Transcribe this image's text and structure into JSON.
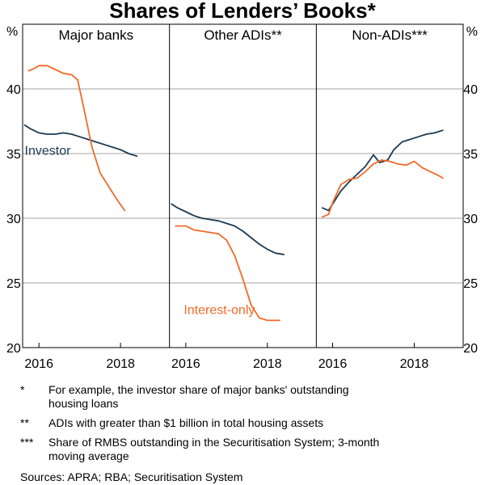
{
  "chart_data": {
    "type": "line",
    "title": "Shares of Lenders’ Books*",
    "y_unit_left": "%",
    "y_unit_right": "%",
    "ylim": [
      20,
      45
    ],
    "y_ticks": [
      20,
      25,
      30,
      35,
      40
    ],
    "x_tick_labels": [
      "2016",
      "2018"
    ],
    "x_ticks": [
      2016,
      2018
    ],
    "xlim": [
      2015.6,
      2019.2
    ],
    "panels": [
      {
        "title": "Major banks",
        "series": [
          {
            "name": "Investor",
            "color": "#1b3a53",
            "label_text": "Investor",
            "x": [
              2015.65,
              2015.8,
              2016.0,
              2016.2,
              2016.4,
              2016.6,
              2016.8,
              2017.0,
              2017.2,
              2017.4,
              2017.6,
              2017.8,
              2018.0,
              2018.2,
              2018.4
            ],
            "y": [
              37.2,
              36.9,
              36.6,
              36.5,
              36.5,
              36.6,
              36.5,
              36.3,
              36.1,
              35.9,
              35.7,
              35.5,
              35.3,
              35.0,
              34.8
            ]
          },
          {
            "name": "Interest-only",
            "color": "#f26a26",
            "x": [
              2015.75,
              2015.9,
              2016.0,
              2016.2,
              2016.4,
              2016.6,
              2016.8,
              2016.95,
              2017.1,
              2017.3,
              2017.5,
              2017.7,
              2017.9,
              2018.1
            ],
            "y": [
              41.4,
              41.6,
              41.8,
              41.8,
              41.5,
              41.2,
              41.1,
              40.7,
              38.5,
              35.5,
              33.5,
              32.5,
              31.5,
              30.6
            ]
          }
        ]
      },
      {
        "title": "Other ADIs**",
        "series": [
          {
            "name": "Investor",
            "color": "#1b3a53",
            "x": [
              2015.65,
              2015.8,
              2016.0,
              2016.2,
              2016.4,
              2016.6,
              2016.8,
              2017.0,
              2017.2,
              2017.4,
              2017.6,
              2017.8,
              2018.0,
              2018.2,
              2018.4
            ],
            "y": [
              31.1,
              30.8,
              30.5,
              30.2,
              30.0,
              29.9,
              29.8,
              29.6,
              29.4,
              29.0,
              28.5,
              28.0,
              27.6,
              27.3,
              27.2
            ]
          },
          {
            "name": "Interest-only",
            "color": "#f26a26",
            "label_text": "Interest-only",
            "x": [
              2015.75,
              2016.0,
              2016.2,
              2016.4,
              2016.6,
              2016.8,
              2017.0,
              2017.2,
              2017.4,
              2017.6,
              2017.8,
              2018.0,
              2018.2,
              2018.3
            ],
            "y": [
              29.4,
              29.4,
              29.1,
              29.0,
              28.9,
              28.8,
              28.3,
              27.1,
              25.3,
              23.3,
              22.3,
              22.1,
              22.1,
              22.1
            ]
          }
        ]
      },
      {
        "title": "Non-ADIs***",
        "series": [
          {
            "name": "Investor",
            "color": "#1b3a53",
            "x": [
              2015.75,
              2015.9,
              2016.0,
              2016.2,
              2016.4,
              2016.6,
              2016.8,
              2017.0,
              2017.15,
              2017.35,
              2017.5,
              2017.7,
              2017.9,
              2018.1,
              2018.3,
              2018.5,
              2018.7
            ],
            "y": [
              30.8,
              30.6,
              31.1,
              32.1,
              32.8,
              33.4,
              34.0,
              34.9,
              34.3,
              34.5,
              35.3,
              35.9,
              36.1,
              36.3,
              36.5,
              36.6,
              36.8
            ]
          },
          {
            "name": "Interest-only",
            "color": "#f26a26",
            "x": [
              2015.75,
              2015.9,
              2016.0,
              2016.2,
              2016.4,
              2016.6,
              2016.8,
              2017.0,
              2017.2,
              2017.4,
              2017.6,
              2017.8,
              2018.0,
              2018.2,
              2018.4,
              2018.6,
              2018.7
            ],
            "y": [
              30.1,
              30.3,
              31.2,
              32.6,
              33.0,
              33.1,
              33.6,
              34.2,
              34.5,
              34.4,
              34.2,
              34.1,
              34.4,
              33.9,
              33.6,
              33.3,
              33.1
            ]
          }
        ]
      }
    ],
    "footnotes": [
      {
        "marker": "*",
        "text": "For example, the investor share of major banks' outstanding housing loans"
      },
      {
        "marker": "**",
        "text": "ADIs with greater than $1 billion in total housing assets"
      },
      {
        "marker": "***",
        "text": "Share of RMBS outstanding in the Securitisation System; 3-month moving average"
      }
    ],
    "sources": "Sources: APRA; RBA; Securitisation System"
  }
}
